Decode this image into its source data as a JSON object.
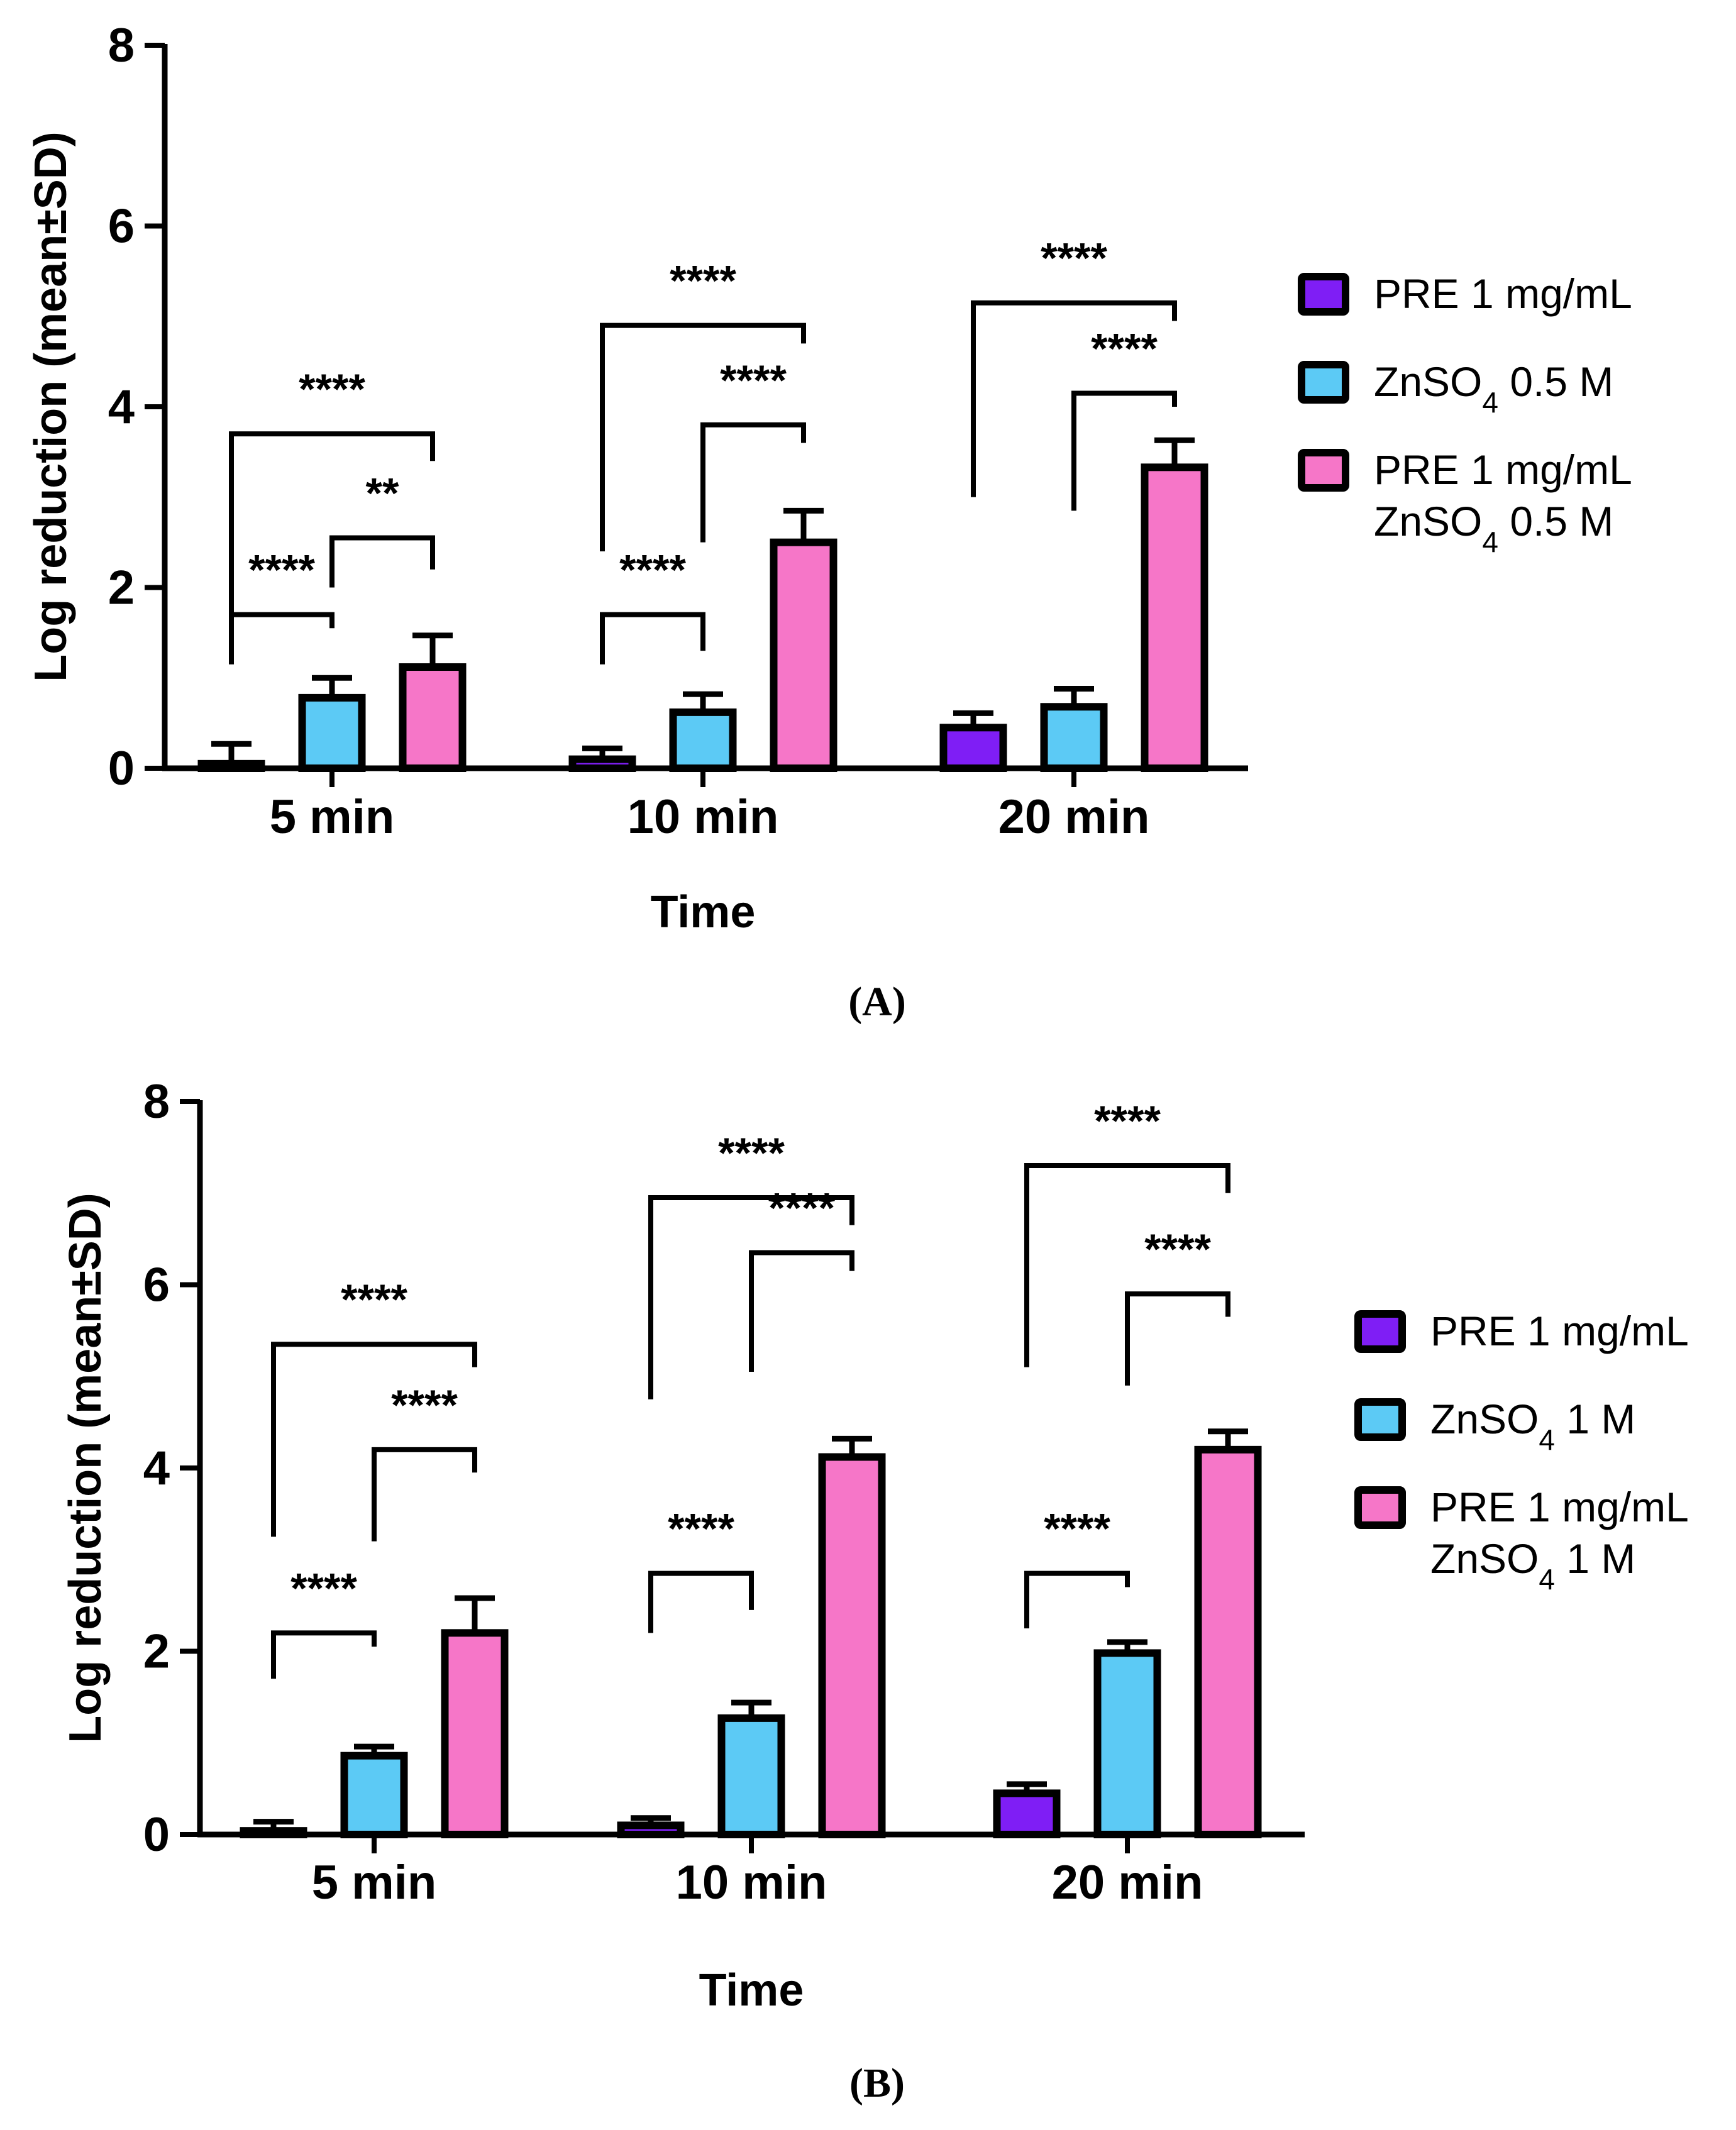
{
  "chart_data": [
    {
      "type": "bar",
      "panel_label": "(A)",
      "categories": [
        "5 min",
        "10 min",
        "20 min"
      ],
      "xlabel": "Time",
      "ylabel": "Log reduction (mean±SD)",
      "ylim": [
        0,
        8
      ],
      "yticks": [
        "0",
        "2",
        "4",
        "6",
        "8"
      ],
      "series": [
        {
          "name": "PRE 1 mg/mL",
          "color": "#7f1ef5",
          "values": [
            0.05,
            0.1,
            0.45
          ],
          "sd": [
            0.22,
            0.12,
            0.16
          ]
        },
        {
          "name": "ZnSO4 0.5 M",
          "color": "#5ccaf5",
          "values": [
            0.78,
            0.62,
            0.68
          ],
          "sd": [
            0.22,
            0.2,
            0.2
          ]
        },
        {
          "name": "PRE 1 mg/mL ZnSO4 0.5 M",
          "color": "#f676c8",
          "values": [
            1.12,
            2.5,
            3.33
          ],
          "sd": [
            0.35,
            0.35,
            0.3
          ]
        }
      ],
      "legend": [
        {
          "line1": "PRE 1 mg/mL",
          "line2": ""
        },
        {
          "line1": "ZnSO",
          "sub": "4",
          "rest": " 0.5 M",
          "line2": ""
        },
        {
          "line1": "PRE 1 mg/mL",
          "line2": "ZnSO",
          "sub2": "4",
          "rest2": " 0.5 M"
        }
      ],
      "significance": [
        {
          "group": 0,
          "from": 0,
          "to": 1,
          "label": "****"
        },
        {
          "group": 0,
          "from": 1,
          "to": 2,
          "label": "**"
        },
        {
          "group": 0,
          "from": 0,
          "to": 2,
          "label": "****"
        },
        {
          "group": 1,
          "from": 0,
          "to": 1,
          "label": "****"
        },
        {
          "group": 1,
          "from": 1,
          "to": 2,
          "label": "****"
        },
        {
          "group": 1,
          "from": 0,
          "to": 2,
          "label": "****"
        },
        {
          "group": 2,
          "from": 1,
          "to": 2,
          "label": "****"
        },
        {
          "group": 2,
          "from": 0,
          "to": 2,
          "label": "****"
        }
      ]
    },
    {
      "type": "bar",
      "panel_label": "(B)",
      "categories": [
        "5 min",
        "10 min",
        "20 min"
      ],
      "xlabel": "Time",
      "ylabel": "Log reduction (mean±SD)",
      "ylim": [
        0,
        8
      ],
      "yticks": [
        "0",
        "2",
        "4",
        "6",
        "8"
      ],
      "series": [
        {
          "name": "PRE 1 mg/mL",
          "color": "#7f1ef5",
          "values": [
            0.04,
            0.1,
            0.45
          ],
          "sd": [
            0.1,
            0.08,
            0.1
          ]
        },
        {
          "name": "ZnSO4 1 M",
          "color": "#5ccaf5",
          "values": [
            0.86,
            1.27,
            1.98
          ],
          "sd": [
            0.1,
            0.17,
            0.12
          ]
        },
        {
          "name": "PRE 1 mg/mL ZnSO4 1 M",
          "color": "#f676c8",
          "values": [
            2.2,
            4.12,
            4.2
          ],
          "sd": [
            0.38,
            0.2,
            0.2
          ]
        }
      ],
      "legend": [
        {
          "line1": "PRE 1 mg/mL",
          "line2": ""
        },
        {
          "line1": "ZnSO",
          "sub": "4",
          "rest": " 1 M",
          "line2": ""
        },
        {
          "line1": "PRE 1 mg/mL",
          "line2": "ZnSO",
          "sub2": "4",
          "rest2": " 1 M"
        }
      ],
      "significance": [
        {
          "group": 0,
          "from": 0,
          "to": 1,
          "label": "****"
        },
        {
          "group": 0,
          "from": 1,
          "to": 2,
          "label": "****"
        },
        {
          "group": 0,
          "from": 0,
          "to": 2,
          "label": "****"
        },
        {
          "group": 1,
          "from": 0,
          "to": 1,
          "label": "****"
        },
        {
          "group": 1,
          "from": 1,
          "to": 2,
          "label": "****"
        },
        {
          "group": 1,
          "from": 0,
          "to": 2,
          "label": "****"
        },
        {
          "group": 2,
          "from": 0,
          "to": 1,
          "label": "****"
        },
        {
          "group": 2,
          "from": 1,
          "to": 2,
          "label": "****"
        },
        {
          "group": 2,
          "from": 0,
          "to": 2,
          "label": "****"
        }
      ]
    }
  ]
}
